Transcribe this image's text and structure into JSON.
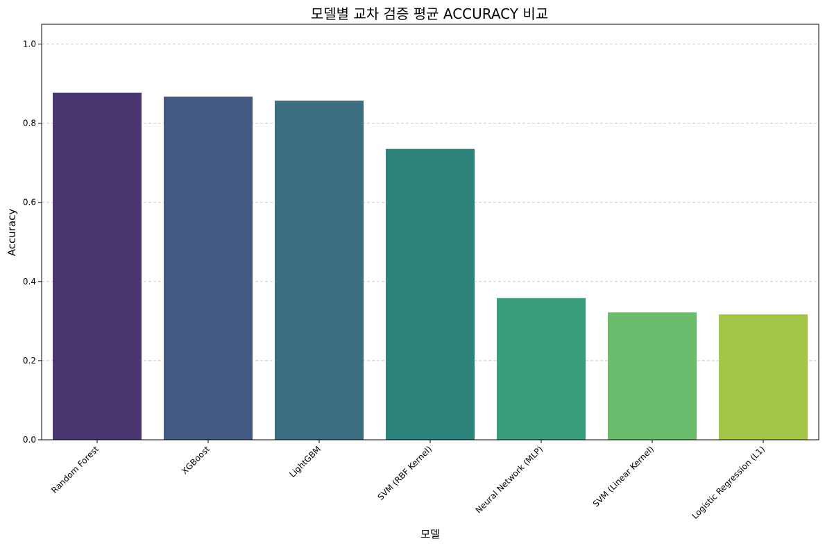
{
  "chart_data": {
    "type": "bar",
    "title": "모델별 교차 검증 평균 ACCURACY 비교",
    "xlabel": "모델",
    "ylabel": "Accuracy",
    "categories": [
      "Random Forest",
      "XGBoost",
      "LightGBM",
      "SVM (RBF Kernel)",
      "Neural Network (MLP)",
      "SVM (Linear Kernel)",
      "Logistic Regression (L1)"
    ],
    "values": [
      0.877,
      0.867,
      0.857,
      0.735,
      0.358,
      0.322,
      0.317
    ],
    "colors": [
      "#4a3670",
      "#455a82",
      "#3a6e80",
      "#2e837c",
      "#3a9e7a",
      "#6bbc6c",
      "#a4c74a"
    ],
    "ylim": [
      0,
      1.05
    ],
    "yticks": [
      "0.0",
      "0.2",
      "0.4",
      "0.6",
      "0.8",
      "1.0"
    ],
    "grid": "y-dashed",
    "legend": "none"
  }
}
